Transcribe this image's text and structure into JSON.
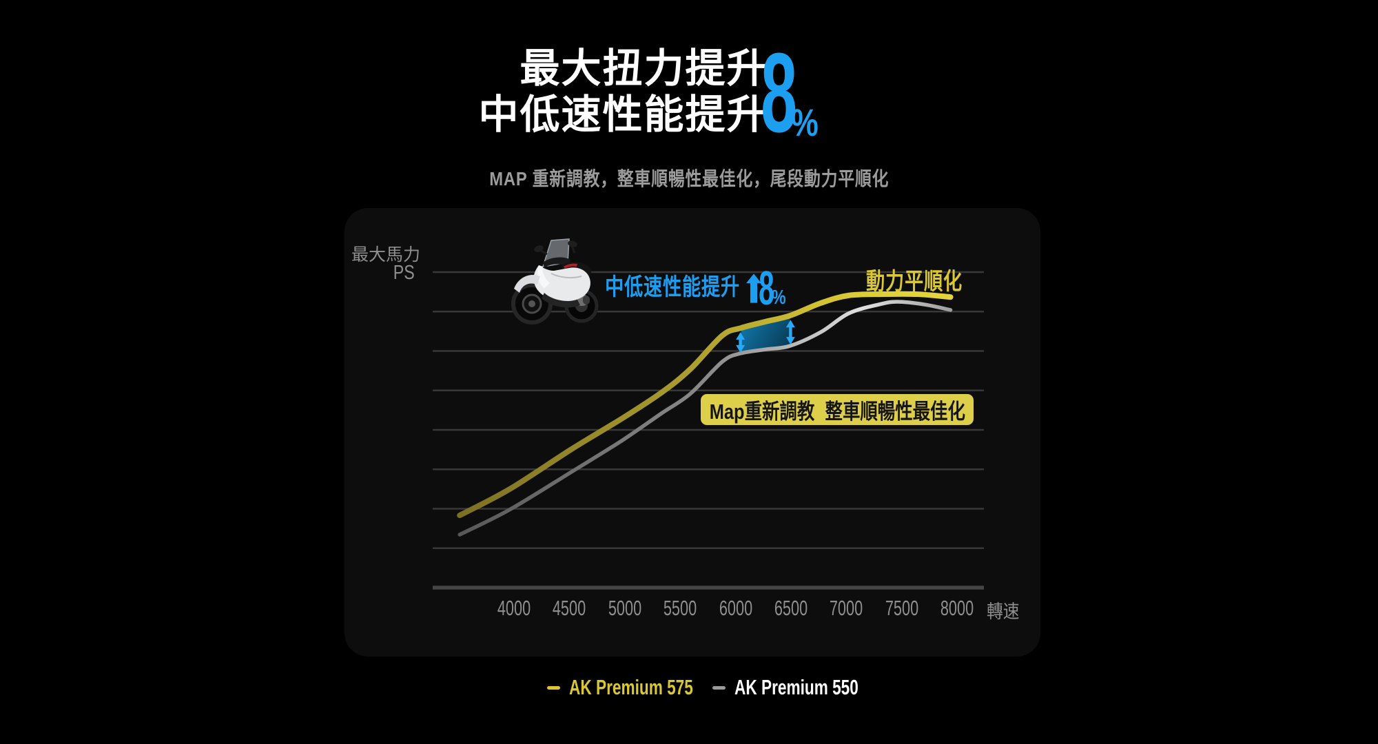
{
  "title": {
    "line1": "最大扭力提升",
    "line2": "中低速性能提升",
    "big_value": "8",
    "big_unit": "%"
  },
  "subtitle": {
    "text": "MAP 重新調教，整車順暢性最佳化，尾段動力平順化"
  },
  "chart": {
    "y_axis": {
      "line1": "最大馬力",
      "line2": "PS"
    },
    "x_axis": {
      "unit": "轉速"
    },
    "annotations": {
      "boost_label": "中低速性能提升",
      "boost_value": "8",
      "boost_unit": "%",
      "smooth_label": "動力平順化",
      "badge_label": "Map重新調教 整車順暢性最佳化"
    }
  },
  "legend": {
    "items": [
      {
        "label": "AK Premium 575",
        "dash_color": "#d9c733",
        "text_color": "#d9c733"
      },
      {
        "label": "AK Premium 550",
        "dash_color": "#9a9a9a",
        "text_color": "#ffffff"
      }
    ]
  },
  "colors": {
    "background": "#000000",
    "panel": "#0d0d0d",
    "grid": "#383838",
    "axis": "#454545",
    "tick_text": "#8f8f8f",
    "accent_blue": "#1d9ff1",
    "arrow_blue": "#2aa7f5",
    "accent_yellow": "#d9c733",
    "badge_bg": "#ddcf49",
    "badge_text": "#151515",
    "band_start": "#1279ab",
    "band_end": "#06344d",
    "title_text": "#ffffff",
    "subtitle_text": "#9c9c9c"
  },
  "chart_data": {
    "type": "line",
    "title": "最大扭力提升 中低速性能提升8%",
    "xlabel": "轉速 (rpm)",
    "ylabel": "最大馬力 PS",
    "x_ticks": [
      "4000",
      "4500",
      "5000",
      "5500",
      "6000",
      "6500",
      "7000",
      "7500",
      "8000"
    ],
    "x_range": [
      3500,
      8100
    ],
    "y_range_index": [
      0,
      100
    ],
    "grid": true,
    "legend_position": "bottom",
    "series": [
      {
        "name": "AK Premium 575",
        "color": "#d9c733",
        "points": [
          [
            3510,
            22.9
          ],
          [
            3960,
            31.2
          ],
          [
            4520,
            43.9
          ],
          [
            4970,
            53.5
          ],
          [
            5330,
            61.8
          ],
          [
            5590,
            69.2
          ],
          [
            5880,
            79.9
          ],
          [
            6050,
            82.3
          ],
          [
            6270,
            84.3
          ],
          [
            6490,
            86.2
          ],
          [
            6770,
            90.2
          ],
          [
            7020,
            92.6
          ],
          [
            7330,
            93.0
          ],
          [
            7640,
            93.0
          ],
          [
            7940,
            92.1
          ]
        ]
      },
      {
        "name": "AK Premium 550",
        "color": "#9a9a9a",
        "points": [
          [
            3510,
            16.8
          ],
          [
            3960,
            24.7
          ],
          [
            4520,
            36.7
          ],
          [
            4970,
            46.5
          ],
          [
            5330,
            55.2
          ],
          [
            5590,
            61.4
          ],
          [
            5880,
            71.6
          ],
          [
            6040,
            74.2
          ],
          [
            6270,
            75.5
          ],
          [
            6490,
            76.6
          ],
          [
            6770,
            81.0
          ],
          [
            7020,
            86.9
          ],
          [
            7290,
            89.7
          ],
          [
            7460,
            90.6
          ],
          [
            7710,
            89.7
          ],
          [
            7940,
            88.0
          ]
        ]
      }
    ],
    "highlight_band": {
      "from_rpm": 6050,
      "to_rpm": 6490,
      "improvement_pct": 8
    }
  }
}
